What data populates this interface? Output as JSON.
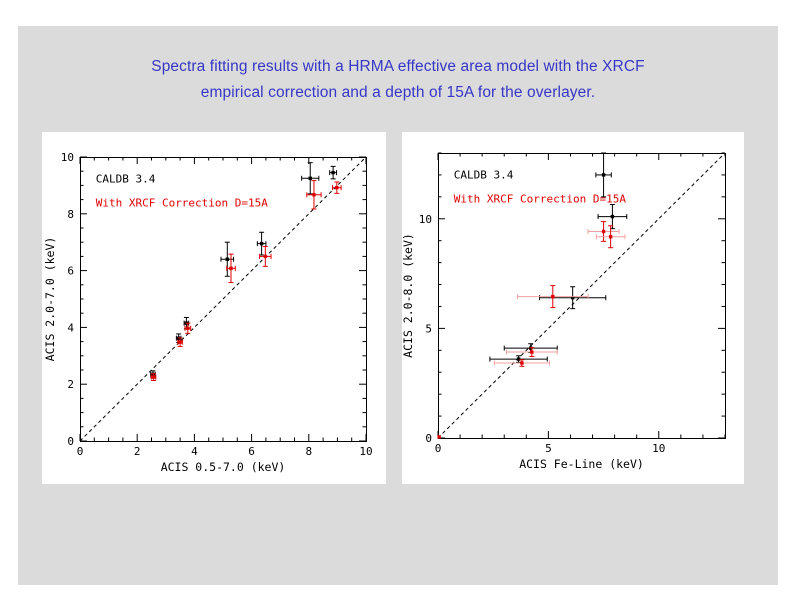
{
  "slide": {
    "title_line1": "Spectra fitting results with a HRMA effective area model with the XRCF",
    "title_line2": "empirical correction and a depth of 15A for the overlayer.",
    "title_color": "#3636c8",
    "background_color": "#dbdbdb",
    "panel_color": "#ffffff"
  },
  "colors": {
    "black_series": "#000000",
    "red_series": "#e00000",
    "pink_errorbar": "#f0a0a0",
    "axis": "#000000"
  },
  "chart_data": [
    {
      "type": "scatter",
      "title": "",
      "xlabel": "ACIS 0.5-7.0 (keV)",
      "ylabel": "ACIS 2.0-7.0 (keV)",
      "xlim": [
        0,
        10
      ],
      "ylim": [
        0,
        10
      ],
      "x_ticks": [
        0,
        2,
        4,
        6,
        8,
        10
      ],
      "y_ticks": [
        0,
        2,
        4,
        6,
        8,
        10
      ],
      "minor_step": 0.5,
      "grid": false,
      "reference_line": {
        "type": "diagonal",
        "style": "dashed",
        "equation": "y=x"
      },
      "legend_position": "top-left-inside",
      "legend": [
        {
          "label": "CALDB 3.4",
          "color": "#000000"
        },
        {
          "label": "With XRCF Correction D=15A",
          "color": "#e00000"
        }
      ],
      "series": [
        {
          "name": "CALDB 3.4",
          "color": "#000000",
          "points": [
            {
              "x": 2.55,
              "y": 2.35,
              "xerr": 0.08,
              "yerr": 0.12
            },
            {
              "x": 3.45,
              "y": 3.62,
              "xerr": 0.08,
              "yerr": 0.15
            },
            {
              "x": 3.72,
              "y": 4.15,
              "xerr": 0.08,
              "yerr": 0.2
            },
            {
              "x": 5.15,
              "y": 6.4,
              "xerr": 0.22,
              "yerr": 0.6
            },
            {
              "x": 6.35,
              "y": 6.95,
              "xerr": 0.15,
              "yerr": 0.4
            },
            {
              "x": 8.05,
              "y": 9.25,
              "xerr": 0.3,
              "yerr": 0.55
            },
            {
              "x": 8.85,
              "y": 9.45,
              "xerr": 0.12,
              "yerr": 0.22
            }
          ]
        },
        {
          "name": "With XRCF Correction D=15A",
          "color": "#e00000",
          "points": [
            {
              "x": 2.57,
              "y": 2.25,
              "xerr": 0.08,
              "yerr": 0.12
            },
            {
              "x": 3.5,
              "y": 3.48,
              "xerr": 0.08,
              "yerr": 0.15
            },
            {
              "x": 3.77,
              "y": 3.97,
              "xerr": 0.1,
              "yerr": 0.18
            },
            {
              "x": 5.28,
              "y": 6.08,
              "xerr": 0.15,
              "yerr": 0.5
            },
            {
              "x": 6.48,
              "y": 6.5,
              "xerr": 0.2,
              "yerr": 0.35
            },
            {
              "x": 8.18,
              "y": 8.67,
              "xerr": 0.25,
              "yerr": 0.5
            },
            {
              "x": 8.98,
              "y": 8.92,
              "xerr": 0.15,
              "yerr": 0.2
            }
          ]
        }
      ]
    },
    {
      "type": "scatter",
      "title": "",
      "xlabel": "ACIS Fe-Line (keV)",
      "ylabel": "ACIS 2.0-8.0 (keV)",
      "xlim": [
        0,
        13
      ],
      "ylim": [
        0,
        13
      ],
      "x_ticks": [
        0,
        5,
        10
      ],
      "y_ticks": [
        0,
        5,
        10
      ],
      "minor_step": 1,
      "grid": false,
      "reference_line": {
        "type": "diagonal",
        "style": "dashed",
        "equation": "y=x"
      },
      "legend_position": "top-left-inside",
      "legend": [
        {
          "label": "CALDB 3.4",
          "color": "#000000"
        },
        {
          "label": "With XRCF Correction D=15A",
          "color": "#e00000"
        }
      ],
      "series": [
        {
          "name": "CALDB 3.4",
          "color": "#000000",
          "points": [
            {
              "x": 3.65,
              "y": 3.6,
              "xerr": 1.3,
              "yerr": 0.15
            },
            {
              "x": 4.2,
              "y": 4.1,
              "xerr": 1.2,
              "yerr": 0.2
            },
            {
              "x": 6.1,
              "y": 6.4,
              "xerr": 1.5,
              "yerr": 0.5
            },
            {
              "x": 7.9,
              "y": 10.1,
              "xerr": 0.65,
              "yerr": 0.55
            },
            {
              "x": 7.5,
              "y": 12.0,
              "xerr": 0.35,
              "yerr": 1.0
            }
          ]
        },
        {
          "name": "With XRCF Correction D=15A",
          "color": "#e00000",
          "xerr_color": "#f0a0a0",
          "points": [
            {
              "x": 0.05,
              "y": 0.05,
              "xerr": 0,
              "yerr": 0
            },
            {
              "x": 3.8,
              "y": 3.42,
              "xerr": 1.25,
              "yerr": 0.15
            },
            {
              "x": 4.25,
              "y": 3.92,
              "xerr": 1.15,
              "yerr": 0.2
            },
            {
              "x": 5.2,
              "y": 6.45,
              "xerr": 1.6,
              "yerr": 0.5
            },
            {
              "x": 7.5,
              "y": 9.42,
              "xerr": 0.7,
              "yerr": 0.45
            },
            {
              "x": 7.82,
              "y": 9.18,
              "xerr": 0.65,
              "yerr": 0.5
            }
          ]
        }
      ]
    }
  ]
}
